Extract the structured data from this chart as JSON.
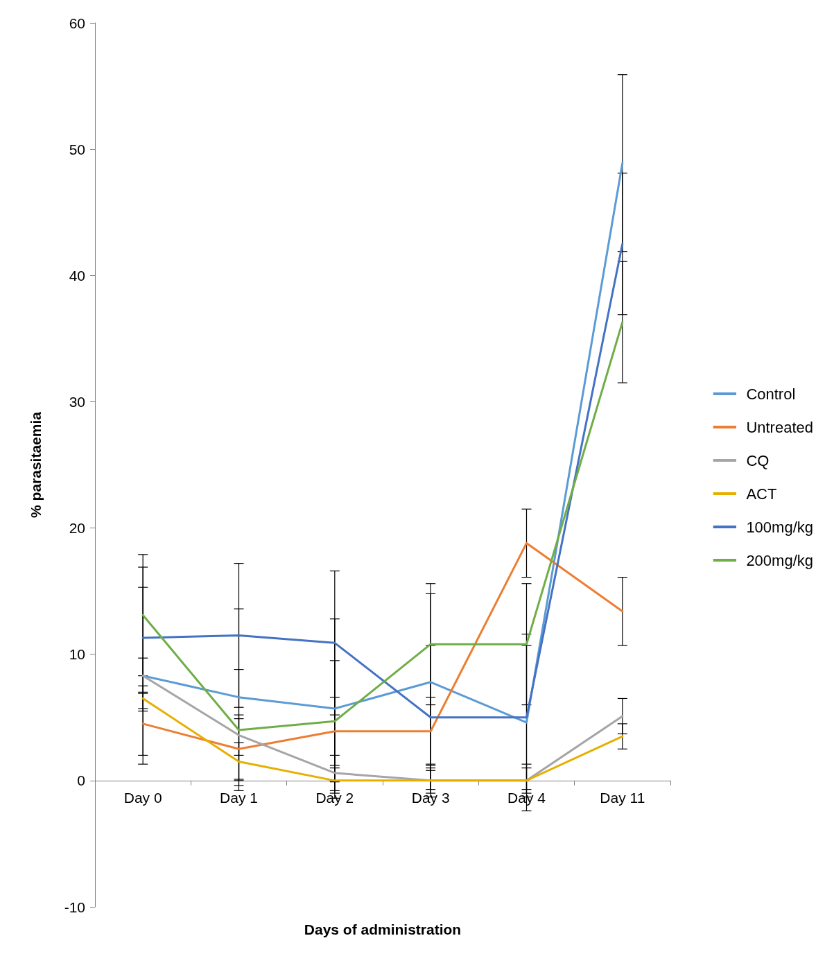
{
  "chart_data": {
    "type": "line",
    "xlabel": "Days of administration",
    "ylabel": "% parasitaemia",
    "categories": [
      "Day 0",
      "Day 1",
      "Day 2",
      "Day 3",
      "Day 4",
      "Day 11"
    ],
    "series": [
      {
        "name": "Control",
        "color": "#5b9bd5",
        "values": [
          8.3,
          6.6,
          5.7,
          7.8,
          4.6,
          48.9
        ],
        "errors": [
          7.0,
          7.0,
          7.1,
          7.0,
          7.0,
          7.0
        ]
      },
      {
        "name": "Untreated",
        "color": "#ed7d31",
        "values": [
          4.5,
          2.5,
          3.9,
          3.9,
          18.8,
          13.4
        ],
        "errors": [
          2.5,
          2.4,
          2.7,
          2.7,
          2.7,
          2.7
        ]
      },
      {
        "name": "CQ",
        "color": "#a5a5a5",
        "values": [
          8.3,
          3.6,
          0.6,
          0,
          0,
          5.1
        ],
        "errors": [
          1.4,
          1.6,
          1.4,
          1.3,
          1.3,
          1.4
        ]
      },
      {
        "name": "ACT",
        "color": "#e6b000",
        "values": [
          6.5,
          1.5,
          0,
          0,
          0,
          3.5
        ],
        "errors": [
          1.0,
          1.5,
          1.0,
          1.0,
          1.0,
          1.0
        ]
      },
      {
        "name": "100mg/kg",
        "color": "#4472c4",
        "values": [
          11.3,
          11.5,
          10.9,
          5.0,
          5.0,
          42.5
        ],
        "errors": [
          5.6,
          5.7,
          5.7,
          5.7,
          5.7,
          5.6
        ]
      },
      {
        "name": "200mg/kg",
        "color": "#70ad47",
        "values": [
          13.1,
          4.0,
          4.7,
          10.8,
          10.8,
          36.3
        ],
        "errors": [
          4.8,
          4.8,
          4.8,
          4.8,
          4.8,
          4.8
        ]
      }
    ],
    "ylim": [
      -10,
      60
    ],
    "yticks": [
      -10,
      0,
      10,
      20,
      30,
      40,
      50,
      60
    ],
    "grid": false,
    "legend": "right",
    "marker": "none",
    "line_style": "solid"
  }
}
